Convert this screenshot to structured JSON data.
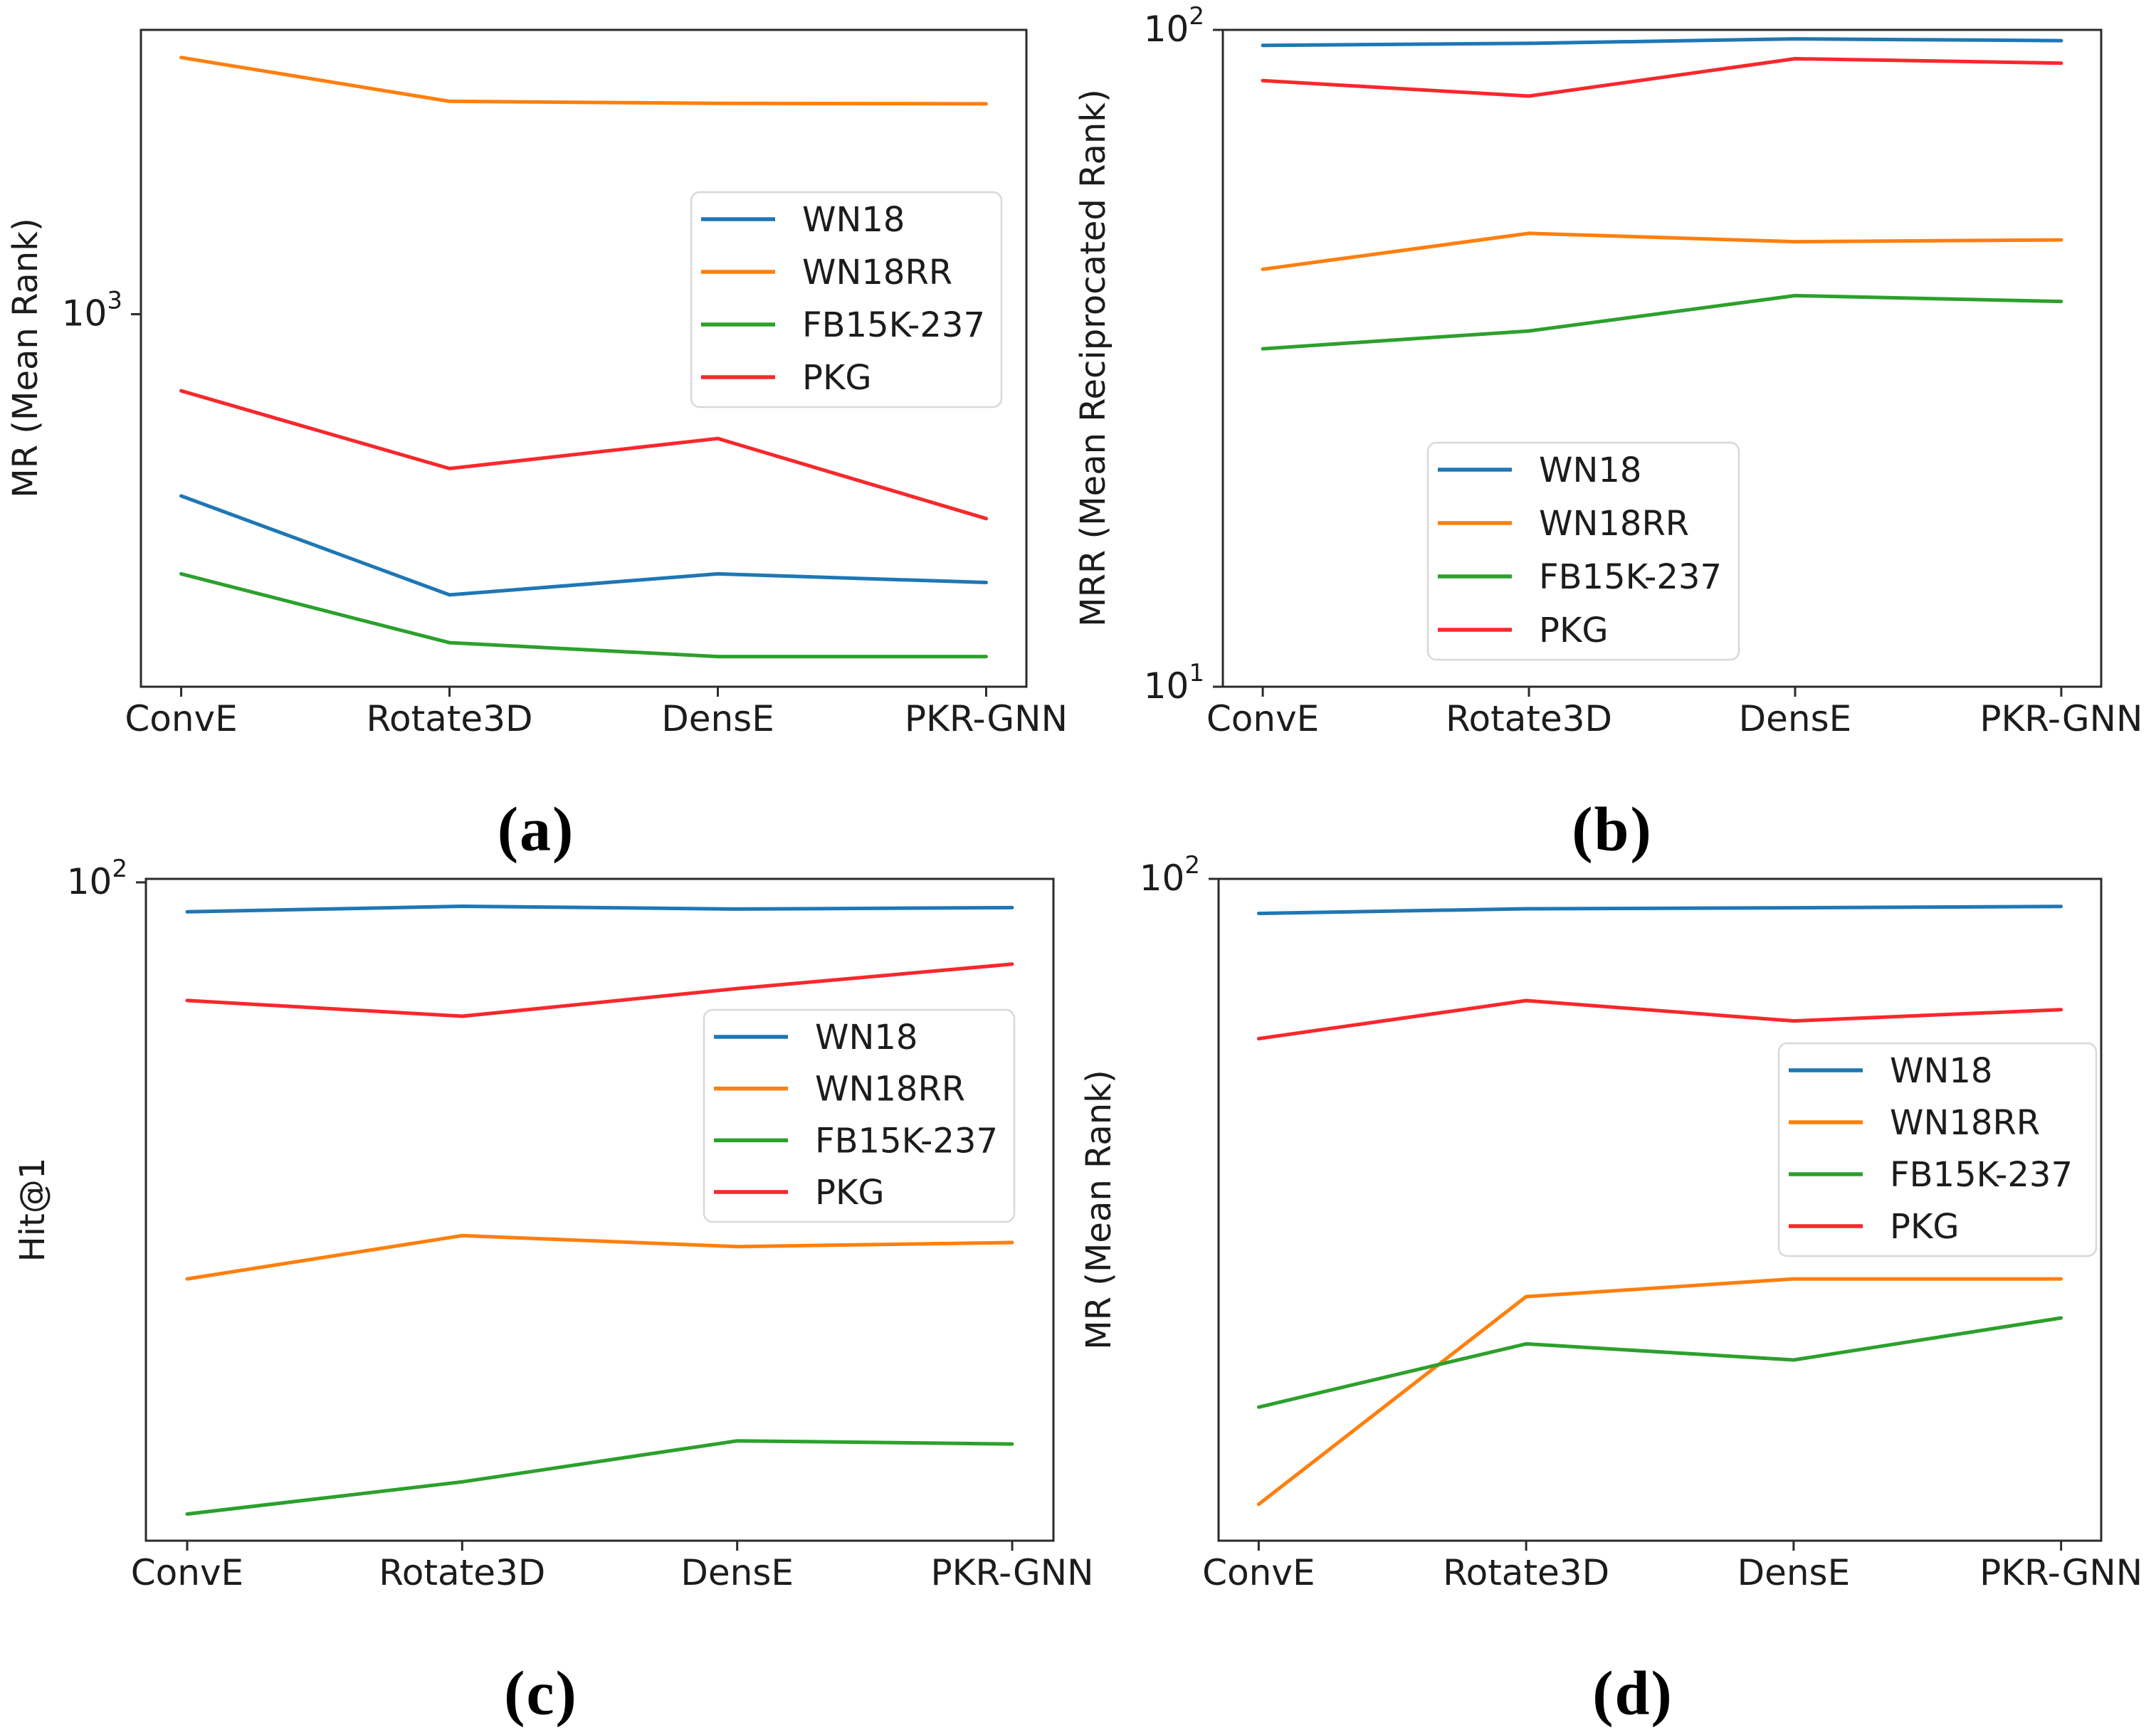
{
  "page": {
    "background": "#ffffff",
    "description": "2x2 grid of log-scale line charts comparing models on four knowledge-graph datasets"
  },
  "palette": {
    "WN18": "#1f77b4",
    "WN18RR": "#ff7f0e",
    "FB15K-237": "#2ca02c",
    "PKG": "#f8282c",
    "axis": "#2b2b2b",
    "text": "#1c1c1c",
    "legend_border": "#d8d8d8"
  },
  "captions": {
    "a": "(a)",
    "b": "(b)",
    "c": "(c)",
    "d": "(d)"
  },
  "chart_data": [
    {
      "id": "a",
      "type": "line",
      "caption": "(a)",
      "ylabel": "MR (Mean Rank)",
      "yscale": "log",
      "ylim": [
        126,
        4860
      ],
      "yticks": [
        {
          "value": 1000,
          "base": "10",
          "exp": "3"
        }
      ],
      "categories": [
        "ConvE",
        "Rotate3D",
        "DensE",
        "PKR-GNN"
      ],
      "legend_position": "upper right",
      "grid": false,
      "series": [
        {
          "name": "WN18",
          "values": [
            364,
            210,
            236,
            225
          ]
        },
        {
          "name": "WN18RR",
          "values": [
            4169,
            3267,
            3231,
            3221
          ]
        },
        {
          "name": "FB15K-237",
          "values": [
            236,
            161,
            149,
            149
          ]
        },
        {
          "name": "PKG",
          "values": [
            653,
            424,
            501,
            321
          ]
        }
      ]
    },
    {
      "id": "b",
      "type": "line",
      "caption": "(b)",
      "ylabel": "MRR (Mean Reciprocated Rank)",
      "yscale": "log",
      "ylim": [
        10,
        100
      ],
      "yticks": [
        {
          "value": 100,
          "base": "10",
          "exp": "2"
        },
        {
          "value": 10,
          "base": "10",
          "exp": "1"
        }
      ],
      "categories": [
        "ConvE",
        "Rotate3D",
        "DensE",
        "PKR-GNN"
      ],
      "legend_position": "center",
      "grid": false,
      "series": [
        {
          "name": "WN18",
          "values": [
            94.7,
            95.4,
            96.9,
            96.3
          ]
        },
        {
          "name": "WN18RR",
          "values": [
            43.2,
            49.0,
            47.6,
            47.9
          ]
        },
        {
          "name": "FB15K-237",
          "values": [
            32.7,
            34.8,
            39.4,
            38.6
          ]
        },
        {
          "name": "PKG",
          "values": [
            83.7,
            79.3,
            90.4,
            89.0
          ]
        }
      ]
    },
    {
      "id": "c",
      "type": "line",
      "caption": "(c)",
      "ylabel": "Hit@1",
      "yscale": "log",
      "ylim": [
        22.3,
        100.8
      ],
      "yticks": [
        {
          "value": 100,
          "base": "10",
          "exp": "2"
        }
      ],
      "categories": [
        "ConvE",
        "Rotate3D",
        "DensE",
        "PKR-GNN"
      ],
      "legend_position": "upper right",
      "grid": false,
      "series": [
        {
          "name": "WN18",
          "values": [
            93.5,
            94.7,
            94.1,
            94.4
          ]
        },
        {
          "name": "WN18RR",
          "values": [
            40.5,
            44.7,
            43.6,
            44.0
          ]
        },
        {
          "name": "FB15K-237",
          "values": [
            23.7,
            25.5,
            28.0,
            27.8
          ]
        },
        {
          "name": "PKG",
          "values": [
            76.4,
            73.7,
            78.5,
            83.0
          ]
        }
      ]
    },
    {
      "id": "d",
      "type": "line",
      "caption": "(d)",
      "ylabel": "MR (Mean Rank)",
      "yscale": "log",
      "ylim": [
        10.7,
        100
      ],
      "yticks": [
        {
          "value": 100,
          "base": "10",
          "exp": "2"
        }
      ],
      "categories": [
        "ConvE",
        "Rotate3D",
        "DensE",
        "PKR-GNN"
      ],
      "legend_position": "center right",
      "grid": false,
      "series": [
        {
          "name": "WN18",
          "values": [
            89.0,
            90.4,
            90.7,
            91.1
          ]
        },
        {
          "name": "WN18RR",
          "values": [
            12.1,
            24.4,
            25.9,
            25.9
          ]
        },
        {
          "name": "FB15K-237",
          "values": [
            16.8,
            20.8,
            19.7,
            22.7
          ]
        },
        {
          "name": "PKG",
          "values": [
            58.3,
            66.3,
            61.9,
            64.3
          ]
        }
      ]
    }
  ]
}
